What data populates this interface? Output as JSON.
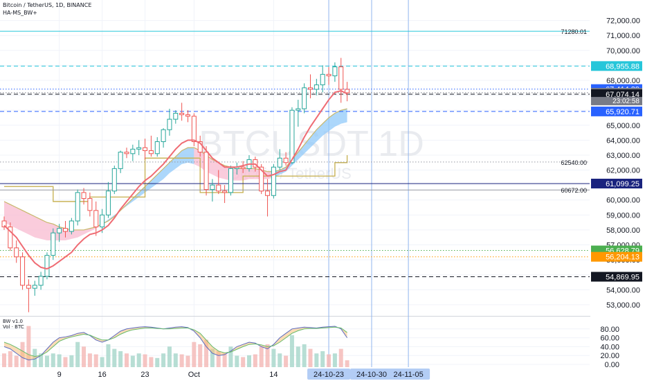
{
  "header": {
    "symbol_line": "Bitcoin / TetherUS, 1D, BINANCE",
    "indicator_label": "HA-MS_BW+",
    "watermark_symbol": "BTCUSDT 1D",
    "watermark_desc": "Bitcoin / TetherUS"
  },
  "oscillator": {
    "title": "BW v1.0",
    "volume_title": "Vol · BTC"
  },
  "colors": {
    "up": "#26a69a",
    "down": "#ef5350",
    "ema": "#ef6b73",
    "cloud_blue": "#90caf9",
    "cloud_red": "#f8bbd0",
    "cloud_edge": "#c8b76a",
    "grid": "#f0f3fa",
    "axis_text": "#131722"
  },
  "chart_data": {
    "type": "candlestick",
    "title": "Bitcoin / TetherUS, 1D, BINANCE",
    "ylim": [
      52300,
      73000
    ],
    "y_ticks": [
      53000,
      54000,
      55000,
      56000,
      57000,
      58000,
      59000,
      60000,
      61000,
      62000,
      63000,
      64000,
      65000,
      66000,
      67000,
      68000,
      69000,
      70000,
      71000,
      72000
    ],
    "y_tick_labels": [
      "53,000.00",
      "54,000.00",
      "55,000.00",
      "56,000.00",
      "57,000.00",
      "58,000.00",
      "59,000.00",
      "60,000.00",
      "61,000.00",
      "62,000.00",
      "63,000.00",
      "64,000.00",
      "65,000.00",
      "66,000.00",
      "67,000.00",
      "68,000.00",
      "69,000.00",
      "70,000.00",
      "71,000.00",
      "72,000.00"
    ],
    "x_tick_labels": [
      {
        "label": "9",
        "index": 9
      },
      {
        "label": "16",
        "index": 16
      },
      {
        "label": "23",
        "index": 23
      },
      {
        "label": "Oct",
        "index": 31
      },
      {
        "label": "14",
        "index": 44
      }
    ],
    "x_date_labels": [
      {
        "label": "24-10-23",
        "index": 53
      },
      {
        "label": "24-10-30",
        "index": 60
      },
      {
        "label": "24-11-05",
        "index": 66
      }
    ],
    "candles": [
      {
        "o": 58600,
        "h": 58900,
        "l": 58000,
        "c": 58200
      },
      {
        "o": 58200,
        "h": 58500,
        "l": 56600,
        "c": 56800
      },
      {
        "o": 56800,
        "h": 57300,
        "l": 55800,
        "c": 56200
      },
      {
        "o": 56200,
        "h": 56500,
        "l": 54000,
        "c": 54300
      },
      {
        "o": 54300,
        "h": 54700,
        "l": 52500,
        "c": 54100
      },
      {
        "o": 54100,
        "h": 54600,
        "l": 53600,
        "c": 54300
      },
      {
        "o": 54300,
        "h": 55200,
        "l": 54000,
        "c": 54900
      },
      {
        "o": 54900,
        "h": 56500,
        "l": 54700,
        "c": 56300
      },
      {
        "o": 56300,
        "h": 58100,
        "l": 56000,
        "c": 57800
      },
      {
        "o": 57800,
        "h": 58400,
        "l": 57200,
        "c": 58100
      },
      {
        "o": 58100,
        "h": 58600,
        "l": 57500,
        "c": 57900
      },
      {
        "o": 57900,
        "h": 58800,
        "l": 57700,
        "c": 58600
      },
      {
        "o": 58600,
        "h": 60700,
        "l": 58300,
        "c": 60500
      },
      {
        "o": 60500,
        "h": 60800,
        "l": 59700,
        "c": 60100
      },
      {
        "o": 60100,
        "h": 60500,
        "l": 58900,
        "c": 59300
      },
      {
        "o": 59300,
        "h": 59900,
        "l": 57600,
        "c": 58200
      },
      {
        "o": 58200,
        "h": 59400,
        "l": 57800,
        "c": 59000
      },
      {
        "o": 59000,
        "h": 61200,
        "l": 58800,
        "c": 60600
      },
      {
        "o": 60600,
        "h": 62300,
        "l": 60400,
        "c": 62100
      },
      {
        "o": 62100,
        "h": 63300,
        "l": 61800,
        "c": 63200
      },
      {
        "o": 63200,
        "h": 63500,
        "l": 62800,
        "c": 63100
      },
      {
        "o": 63100,
        "h": 63700,
        "l": 62600,
        "c": 63400
      },
      {
        "o": 63400,
        "h": 64000,
        "l": 63000,
        "c": 63500
      },
      {
        "o": 63500,
        "h": 64100,
        "l": 62700,
        "c": 63300
      },
      {
        "o": 63300,
        "h": 64300,
        "l": 62900,
        "c": 63100
      },
      {
        "o": 63100,
        "h": 64200,
        "l": 62900,
        "c": 63900
      },
      {
        "o": 63900,
        "h": 64800,
        "l": 63500,
        "c": 64700
      },
      {
        "o": 64700,
        "h": 66100,
        "l": 64300,
        "c": 65400
      },
      {
        "o": 65400,
        "h": 66000,
        "l": 65100,
        "c": 65800
      },
      {
        "o": 65800,
        "h": 66500,
        "l": 65300,
        "c": 65700
      },
      {
        "o": 65700,
        "h": 66000,
        "l": 65200,
        "c": 65600
      },
      {
        "o": 65600,
        "h": 65800,
        "l": 63600,
        "c": 63900
      },
      {
        "o": 63900,
        "h": 64300,
        "l": 62900,
        "c": 63200
      },
      {
        "o": 63200,
        "h": 63600,
        "l": 60300,
        "c": 60700
      },
      {
        "o": 60700,
        "h": 61400,
        "l": 59900,
        "c": 61000
      },
      {
        "o": 61000,
        "h": 62000,
        "l": 60400,
        "c": 60600
      },
      {
        "o": 60600,
        "h": 61000,
        "l": 59800,
        "c": 60500
      },
      {
        "o": 60500,
        "h": 62300,
        "l": 60300,
        "c": 62100
      },
      {
        "o": 62100,
        "h": 62500,
        "l": 61700,
        "c": 62200
      },
      {
        "o": 62200,
        "h": 62600,
        "l": 61800,
        "c": 62100
      },
      {
        "o": 62100,
        "h": 63000,
        "l": 61900,
        "c": 62700
      },
      {
        "o": 62700,
        "h": 62900,
        "l": 61900,
        "c": 62200
      },
      {
        "o": 62200,
        "h": 62400,
        "l": 60400,
        "c": 60600
      },
      {
        "o": 60600,
        "h": 61400,
        "l": 58900,
        "c": 60300
      },
      {
        "o": 60300,
        "h": 62400,
        "l": 60100,
        "c": 62200
      },
      {
        "o": 62200,
        "h": 63400,
        "l": 62000,
        "c": 62800
      },
      {
        "o": 62800,
        "h": 63200,
        "l": 62300,
        "c": 62500
      },
      {
        "o": 62500,
        "h": 66200,
        "l": 62400,
        "c": 66000
      },
      {
        "o": 66000,
        "h": 66700,
        "l": 64900,
        "c": 66100
      },
      {
        "o": 66100,
        "h": 67800,
        "l": 65800,
        "c": 67500
      },
      {
        "o": 67500,
        "h": 68400,
        "l": 66800,
        "c": 67400
      },
      {
        "o": 67400,
        "h": 68100,
        "l": 67000,
        "c": 67700
      },
      {
        "o": 67700,
        "h": 69000,
        "l": 67200,
        "c": 68400
      },
      {
        "o": 68400,
        "h": 68900,
        "l": 67700,
        "c": 68300
      },
      {
        "o": 68300,
        "h": 69200,
        "l": 67900,
        "c": 68900
      },
      {
        "o": 68900,
        "h": 69500,
        "l": 66500,
        "c": 67400
      },
      {
        "o": 67400,
        "h": 67900,
        "l": 66600,
        "c": 67170
      }
    ],
    "ema": [
      58300,
      57900,
      57500,
      56900,
      56300,
      55800,
      55500,
      55400,
      55600,
      55900,
      56200,
      56500,
      57000,
      57400,
      57700,
      57800,
      58000,
      58300,
      58800,
      59400,
      59900,
      60400,
      60900,
      61300,
      61600,
      62000,
      62400,
      62900,
      63400,
      63800,
      64000,
      64000,
      63800,
      63300,
      62800,
      62500,
      62200,
      62200,
      62200,
      62300,
      62400,
      62400,
      62000,
      61600,
      61700,
      61900,
      62000,
      62700,
      63400,
      64200,
      64900,
      65500,
      66100,
      66700,
      67200,
      67300,
      67100
    ],
    "cloud_upper": [
      59900,
      59700,
      59500,
      59300,
      59100,
      58900,
      58700,
      58500,
      58400,
      58200,
      58100,
      58000,
      58000,
      58000,
      58100,
      58200,
      58400,
      58600,
      58900,
      59300,
      59700,
      60100,
      60500,
      60900,
      61300,
      61700,
      62100,
      62500,
      62900,
      63300,
      63500,
      63500,
      63300,
      63000,
      62700,
      62500,
      62300,
      62200,
      62100,
      62100,
      62100,
      62100,
      62000,
      61900,
      61900,
      62000,
      62200,
      62700,
      63200,
      63700,
      64200,
      64700,
      65100,
      65500,
      65800,
      66000,
      66100
    ],
    "cloud_lower": [
      58500,
      58300,
      58100,
      57900,
      57700,
      57500,
      57400,
      57300,
      57300,
      57300,
      57300,
      57400,
      57500,
      57700,
      57900,
      58100,
      58400,
      58700,
      59000,
      59300,
      59600,
      59900,
      60200,
      60500,
      60800,
      61100,
      61400,
      61800,
      62100,
      62400,
      62500,
      62400,
      62200,
      61900,
      61700,
      61500,
      61400,
      61300,
      61300,
      61300,
      61400,
      61400,
      61400,
      61400,
      61500,
      61700,
      61900,
      62300,
      62700,
      63100,
      63500,
      63900,
      64300,
      64600,
      64900,
      65100,
      65200
    ],
    "step_line": [
      60900,
      60900,
      60900,
      60900,
      60900,
      60900,
      60900,
      60900,
      59900,
      59900,
      59900,
      59900,
      59900,
      59900,
      60200,
      60200,
      60200,
      60200,
      60200,
      60200,
      60200,
      60200,
      60200,
      62800,
      62800,
      62800,
      62800,
      62800,
      62800,
      62800,
      62800,
      62800,
      60500,
      60500,
      60500,
      60500,
      60500,
      60500,
      60500,
      61600,
      61600,
      61600,
      61600,
      61600,
      61600,
      61600,
      61600,
      61600,
      61600,
      61600,
      61600,
      61600,
      61600,
      61600,
      62500,
      62500,
      63000
    ],
    "price_lines": [
      {
        "value": 71280.01,
        "label": "71280.01",
        "style": "solid",
        "color": "#26c6da",
        "badge": false
      },
      {
        "value": 68955.88,
        "label": "68,955.88",
        "style": "dashed",
        "color": "#26c6da",
        "badge": true
      },
      {
        "value": 67414.39,
        "label": "67,414.39",
        "style": "dotted",
        "color": "#2962ff",
        "badge": true
      },
      {
        "value": 67169.31,
        "label": "67,169.31",
        "style": "dotted",
        "color": "#787b86",
        "badge": true
      },
      {
        "value": 67074.14,
        "label": "67,074.14",
        "style": "dashed",
        "color": "#131722",
        "badge": true
      },
      {
        "value": 65920.71,
        "label": "65,920.71",
        "style": "dashed",
        "color": "#2962ff",
        "badge": true
      },
      {
        "value": 62540.0,
        "label": "62540.00",
        "style": "dotted",
        "color": "#9598a1",
        "badge": false
      },
      {
        "value": 61099.25,
        "label": "61,099.25",
        "style": "solid",
        "color": "#1a237e",
        "badge": true
      },
      {
        "value": 60672.0,
        "label": "60672.00",
        "style": "solid",
        "color": "#9598a1",
        "badge": false
      },
      {
        "value": 56628.79,
        "label": "56,628.79",
        "style": "dotted",
        "color": "#4caf50",
        "badge": true
      },
      {
        "value": 56204.13,
        "label": "56,204.13",
        "style": "dotted",
        "color": "#ff9800",
        "badge": true
      },
      {
        "value": 54869.95,
        "label": "54,869.95",
        "style": "dashed",
        "color": "#131722",
        "badge": true
      }
    ],
    "countdown": "23:02:58",
    "oscillator": {
      "ylim": [
        0,
        100
      ],
      "ticks": [
        0,
        20,
        40,
        60,
        80
      ],
      "tick_labels": [
        "0.00",
        "20.00",
        "40.00",
        "60.00",
        "80.00"
      ],
      "volume": [
        30,
        35,
        25,
        55,
        90,
        40,
        30,
        25,
        30,
        28,
        22,
        26,
        55,
        45,
        30,
        28,
        22,
        50,
        40,
        35,
        30,
        25,
        30,
        28,
        22,
        20,
        30,
        45,
        30,
        28,
        25,
        55,
        50,
        60,
        40,
        35,
        30,
        45,
        25,
        22,
        26,
        28,
        45,
        50,
        40,
        30,
        25,
        70,
        45,
        50,
        40,
        30,
        35,
        28,
        30,
        40,
        15
      ],
      "line_a": [
        40,
        35,
        25,
        15,
        10,
        12,
        20,
        35,
        50,
        60,
        62,
        65,
        70,
        72,
        65,
        55,
        50,
        55,
        65,
        75,
        80,
        82,
        84,
        85,
        84,
        82,
        80,
        82,
        84,
        85,
        83,
        75,
        60,
        40,
        25,
        20,
        22,
        30,
        40,
        45,
        50,
        48,
        40,
        35,
        45,
        60,
        70,
        80,
        82,
        84,
        83,
        82,
        84,
        85,
        86,
        80,
        60
      ],
      "line_b": [
        50,
        45,
        38,
        30,
        22,
        18,
        20,
        28,
        40,
        52,
        58,
        62,
        65,
        68,
        66,
        60,
        55,
        55,
        60,
        68,
        74,
        78,
        80,
        82,
        82,
        81,
        80,
        80,
        81,
        82,
        82,
        78,
        70,
        55,
        40,
        30,
        26,
        28,
        34,
        40,
        45,
        46,
        44,
        40,
        42,
        50,
        60,
        70,
        76,
        80,
        81,
        81,
        82,
        83,
        84,
        82,
        72
      ]
    }
  }
}
